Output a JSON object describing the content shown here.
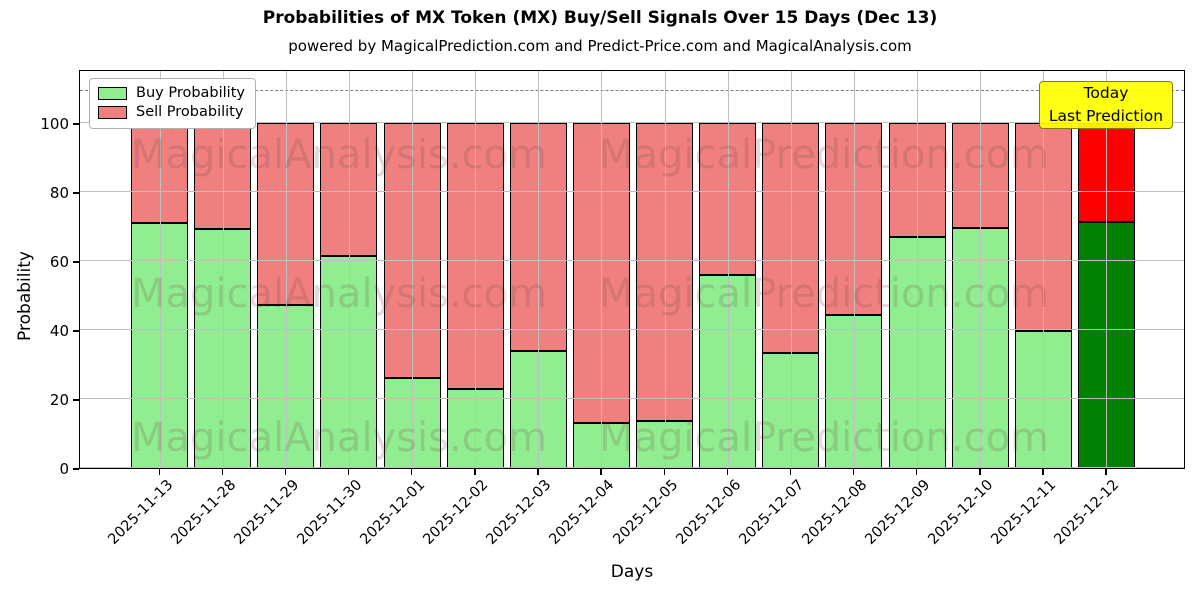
{
  "header": {
    "title": "Probabilities of MX Token (MX) Buy/Sell Signals Over 15 Days (Dec 13)",
    "subtitle": "powered by MagicalPrediction.com and Predict-Price.com and MagicalAnalysis.com"
  },
  "axes": {
    "x_label": "Days",
    "y_label": "Probability",
    "y_ticks": [
      0,
      20,
      40,
      60,
      80,
      100
    ]
  },
  "legend": {
    "items": [
      {
        "label": "Buy Probability",
        "color": "#90EE90"
      },
      {
        "label": "Sell Probability",
        "color": "#F08080"
      }
    ],
    "position": "upper left"
  },
  "annotation": {
    "line1": "Today",
    "line2": "Last Prediction",
    "bg_color": "#FFFF00"
  },
  "watermarks": [
    "MagicalAnalysis.com",
    "MagicalPrediction.com"
  ],
  "chart_data": {
    "type": "bar",
    "stacked": true,
    "title": "Probabilities of MX Token (MX) Buy/Sell Signals Over 15 Days (Dec 13)",
    "xlabel": "Days",
    "ylabel": "Probability",
    "ylim": [
      0,
      115.6
    ],
    "grid": true,
    "legend_position": "upper left",
    "categories": [
      "2025-11-13",
      "2025-11-28",
      "2025-11-29",
      "2025-11-30",
      "2025-12-01",
      "2025-12-02",
      "2025-12-03",
      "2025-12-04",
      "2025-12-05",
      "2025-12-06",
      "2025-12-07",
      "2025-12-08",
      "2025-12-09",
      "2025-12-10",
      "2025-12-11",
      "2025-12-12"
    ],
    "series": [
      {
        "name": "Buy Probability",
        "color": "#90EE90",
        "values": [
          71.0,
          69.3,
          47.3,
          61.4,
          26.1,
          23.0,
          33.8,
          12.9,
          13.5,
          56.0,
          33.2,
          44.4,
          66.9,
          69.5,
          39.6,
          71.2
        ]
      },
      {
        "name": "Sell Probability",
        "color": "#F08080",
        "values": [
          29.0,
          30.7,
          52.7,
          38.6,
          73.9,
          77.0,
          66.2,
          87.1,
          86.5,
          44.0,
          66.8,
          55.6,
          33.1,
          30.5,
          60.4,
          28.8
        ]
      }
    ],
    "today_bar": {
      "category": "2025-12-12",
      "buy_color": "#008000",
      "sell_color": "#FF0000"
    },
    "hline": {
      "y": 110,
      "style": "dashed",
      "color": "#7f7f7f"
    }
  }
}
